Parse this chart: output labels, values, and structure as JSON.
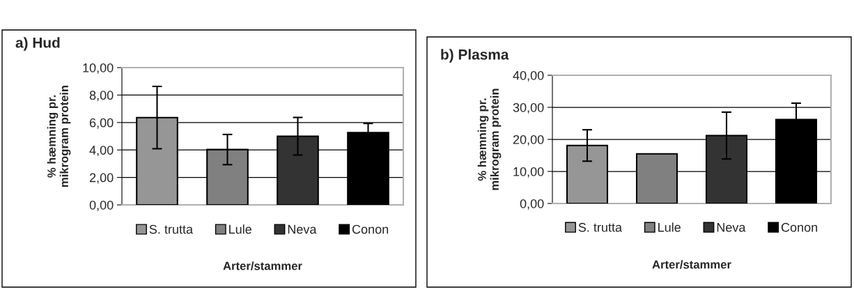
{
  "chart_data": [
    {
      "type": "bar",
      "title": "a) Hud",
      "xlabel": "Arter/stammer",
      "ylabel": "% hæmning pr.\nmikrogram protein",
      "categories": [
        null,
        null,
        null,
        null
      ],
      "series": [
        {
          "name": "S. trutta",
          "color": "#969696",
          "values": [
            6.36,
            null,
            null,
            null
          ],
          "errors": [
            2.27,
            null,
            null,
            null
          ]
        },
        {
          "name": "Lule",
          "color": "#808080",
          "values": [
            null,
            4.03,
            null,
            null
          ],
          "errors": [
            null,
            1.1,
            null,
            null
          ]
        },
        {
          "name": "Neva",
          "color": "#333333",
          "values": [
            null,
            null,
            5.0,
            null
          ],
          "errors": [
            null,
            null,
            1.37,
            null
          ]
        },
        {
          "name": "Conon",
          "color": "#000000",
          "values": [
            null,
            null,
            null,
            5.27
          ],
          "errors": [
            null,
            null,
            null,
            0.66
          ]
        }
      ],
      "ylim": [
        0,
        10
      ],
      "yticks": [
        {
          "value": 0,
          "label": "0,00"
        },
        {
          "value": 2,
          "label": "2,00"
        },
        {
          "value": 4,
          "label": "4,00"
        },
        {
          "value": 6,
          "label": "6,00"
        },
        {
          "value": 8,
          "label": "8,00"
        },
        {
          "value": 10,
          "label": "10,00"
        }
      ],
      "grid": "y",
      "legend": "bottom"
    },
    {
      "type": "bar",
      "title": "b) Plasma",
      "xlabel": "Arter/stammer",
      "ylabel": "% hæmning pr.\nmikrogram protein",
      "categories": [
        null,
        null,
        null,
        null
      ],
      "series": [
        {
          "name": "S. trutta",
          "color": "#969696",
          "values": [
            18.1,
            null,
            null,
            null
          ],
          "errors": [
            4.9,
            null,
            null,
            null
          ]
        },
        {
          "name": "Lule",
          "color": "#808080",
          "values": [
            null,
            15.5,
            null,
            null
          ]
        },
        {
          "name": "Neva",
          "color": "#333333",
          "values": [
            null,
            null,
            21.2,
            null
          ],
          "errors": [
            null,
            null,
            7.3,
            null
          ]
        },
        {
          "name": "Conon",
          "color": "#000000",
          "values": [
            null,
            null,
            null,
            26.2
          ],
          "errors": [
            null,
            null,
            null,
            5.1
          ]
        }
      ],
      "ylim": [
        0,
        40
      ],
      "yticks": [
        {
          "value": 0,
          "label": "0,00"
        },
        {
          "value": 10,
          "label": "10,00"
        },
        {
          "value": 20,
          "label": "20,00"
        },
        {
          "value": 30,
          "label": "30,00"
        },
        {
          "value": 40,
          "label": "40,00"
        }
      ],
      "grid": "y",
      "legend": "bottom"
    }
  ]
}
